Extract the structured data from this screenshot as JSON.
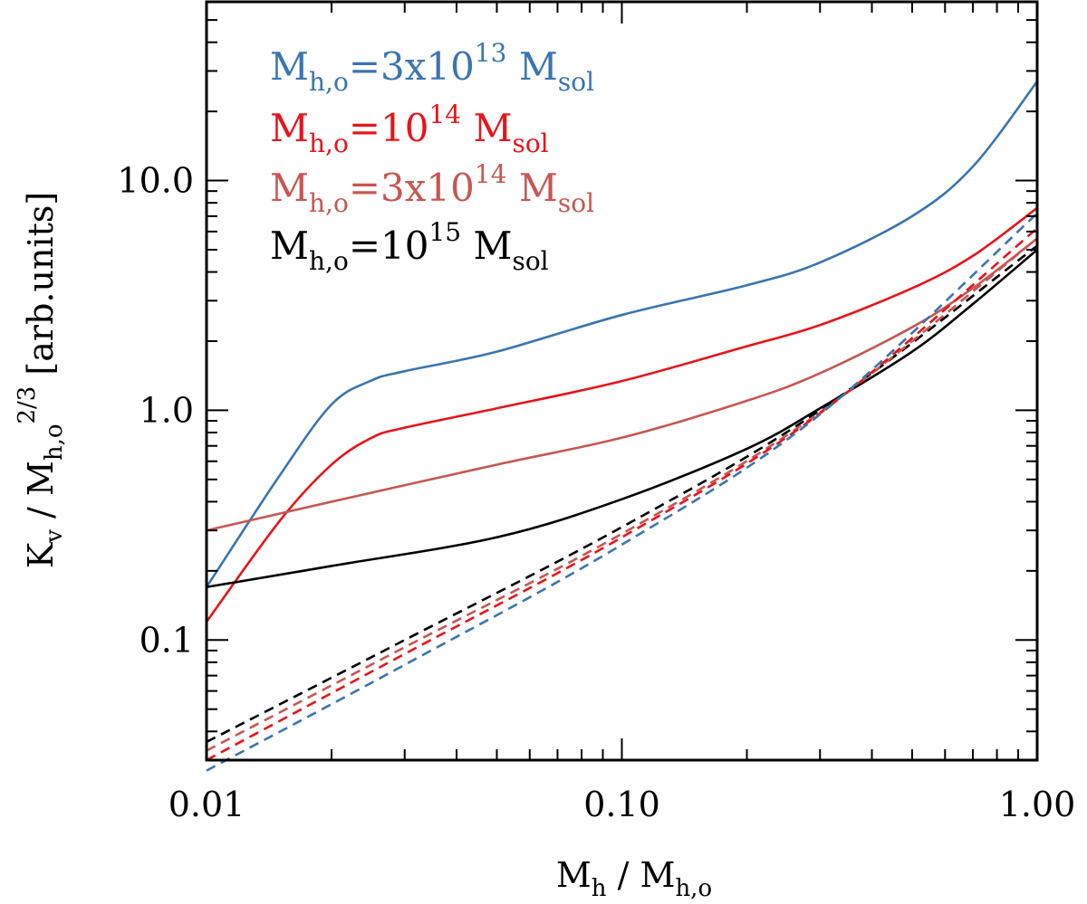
{
  "chart_data": {
    "type": "line",
    "x_scale": "log",
    "y_scale": "log",
    "xlim": [
      0.01,
      1.0
    ],
    "ylim": [
      0.03,
      60
    ],
    "x_ticks": [
      {
        "value": 0.01,
        "label": "0.01"
      },
      {
        "value": 0.1,
        "label": "0.10"
      },
      {
        "value": 1.0,
        "label": "1.00"
      }
    ],
    "y_ticks": [
      {
        "value": 0.1,
        "label": "0.1"
      },
      {
        "value": 1.0,
        "label": "1.0"
      },
      {
        "value": 10.0,
        "label": "10.0"
      }
    ],
    "xlabel": {
      "main1": "M",
      "sub1": "h",
      "sep": " / ",
      "main2": "M",
      "sub2": "h,o"
    },
    "ylabel": {
      "main1": "K",
      "sub1": "v",
      "sep": " / ",
      "main2": "M",
      "sub2": "h,o",
      "sup2": "2/3",
      "units": " [arb.units]"
    },
    "legend_position": "top-left",
    "legend": [
      {
        "prefix": "M",
        "sub": "h,o",
        "eq": "=3x10",
        "sup": "13",
        "unit": " M",
        "unit_sub": "sol",
        "color": "#3a75b0"
      },
      {
        "prefix": "M",
        "sub": "h,o",
        "eq": "=10",
        "sup": "14",
        "unit": " M",
        "unit_sub": "sol",
        "color": "#e8141a"
      },
      {
        "prefix": "M",
        "sub": "h,o",
        "eq": "=3x10",
        "sup": "14",
        "unit": " M",
        "unit_sub": "sol",
        "color": "#c85652"
      },
      {
        "prefix": "M",
        "sub": "h,o",
        "eq": "=10",
        "sup": "15",
        "unit": " M",
        "unit_sub": "sol",
        "color": "#000000"
      }
    ],
    "series": [
      {
        "color": "#3a75b0",
        "style": "solid",
        "x": [
          0.01,
          0.015,
          0.02,
          0.025,
          0.03,
          0.05,
          0.1,
          0.2,
          0.3,
          0.5,
          0.7,
          1.0
        ],
        "y": [
          0.17,
          0.52,
          1.06,
          1.35,
          1.48,
          1.8,
          2.6,
          3.5,
          4.4,
          7.0,
          11.5,
          27
        ]
      },
      {
        "color": "#e8141a",
        "style": "solid",
        "x": [
          0.01,
          0.015,
          0.02,
          0.025,
          0.03,
          0.05,
          0.1,
          0.2,
          0.3,
          0.5,
          0.7,
          1.0
        ],
        "y": [
          0.12,
          0.33,
          0.58,
          0.76,
          0.84,
          1.02,
          1.34,
          1.9,
          2.35,
          3.4,
          4.7,
          7.6
        ]
      },
      {
        "color": "#c85652",
        "style": "solid",
        "x": [
          0.01,
          0.02,
          0.05,
          0.1,
          0.2,
          0.3,
          0.5,
          0.7,
          1.0
        ],
        "y": [
          0.3,
          0.4,
          0.58,
          0.76,
          1.1,
          1.45,
          2.3,
          3.4,
          5.6
        ]
      },
      {
        "color": "#000000",
        "style": "solid",
        "x": [
          0.01,
          0.02,
          0.05,
          0.1,
          0.2,
          0.3,
          0.5,
          0.7,
          1.0
        ],
        "y": [
          0.17,
          0.21,
          0.28,
          0.41,
          0.68,
          1.02,
          1.8,
          2.9,
          5.0
        ]
      },
      {
        "color": "#000000",
        "style": "dashed",
        "x": [
          0.01,
          0.03,
          0.1,
          0.3,
          1.0
        ],
        "y": [
          0.036,
          0.1,
          0.31,
          1.0,
          5.2
        ]
      },
      {
        "color": "#c85652",
        "style": "dashed",
        "x": [
          0.01,
          0.03,
          0.1,
          0.3,
          1.0
        ],
        "y": [
          0.033,
          0.093,
          0.29,
          0.98,
          5.6
        ]
      },
      {
        "color": "#e8141a",
        "style": "dashed",
        "x": [
          0.01,
          0.03,
          0.1,
          0.3,
          1.0
        ],
        "y": [
          0.03,
          0.087,
          0.28,
          0.97,
          6.2
        ]
      },
      {
        "color": "#3a75b0",
        "style": "dashed",
        "x": [
          0.01,
          0.03,
          0.1,
          0.3,
          1.0
        ],
        "y": [
          0.027,
          0.078,
          0.26,
          0.96,
          7.2
        ]
      }
    ]
  }
}
